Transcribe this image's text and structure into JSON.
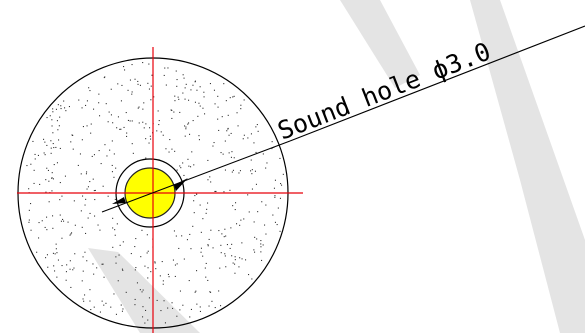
{
  "drawing": {
    "note": "Sound hole ϕ3.0",
    "colors": {
      "outline": "#000000",
      "centerline": "#e8000b",
      "hole_fill": "#ffff00",
      "hole_outline": "#222222",
      "watermark": "#e4e4e4",
      "stipple": "#333333"
    }
  }
}
